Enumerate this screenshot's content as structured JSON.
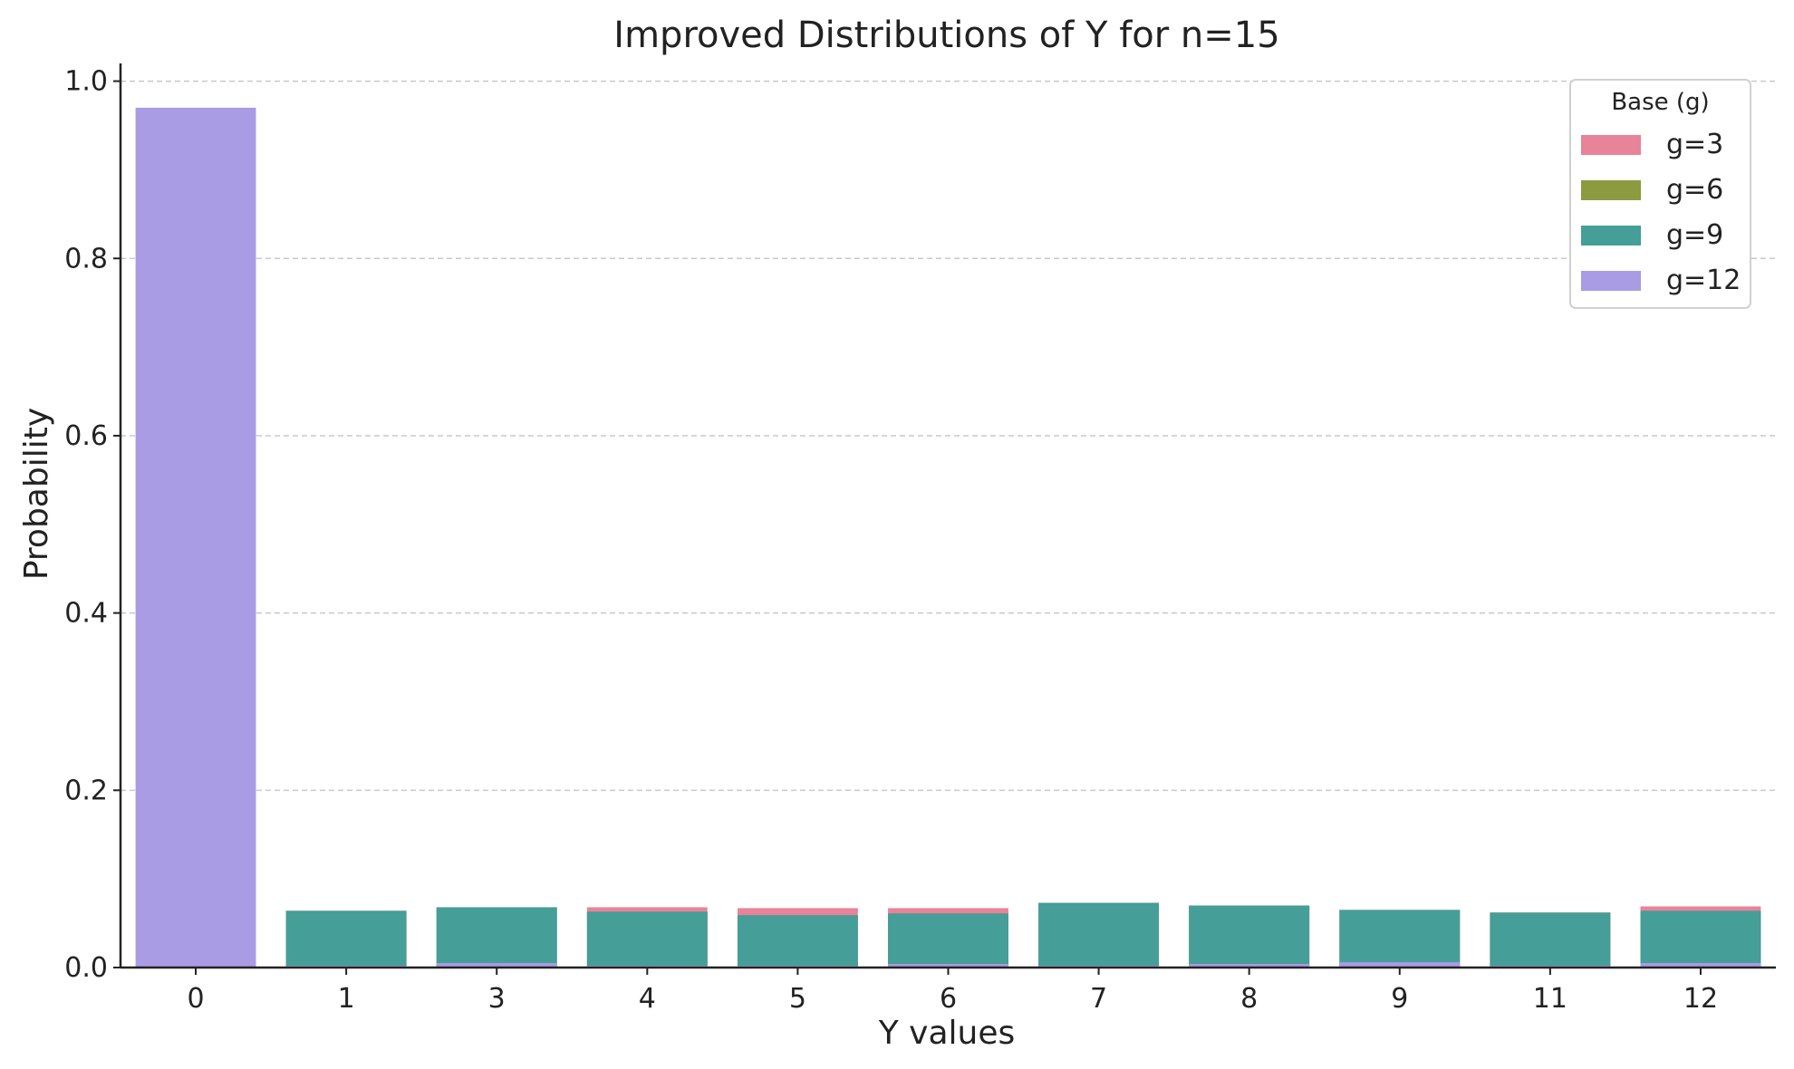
{
  "chart_data": {
    "type": "bar",
    "title": "Improved Distributions of Y for n=15",
    "xlabel": "Y values",
    "ylabel": "Probability",
    "categories": [
      "0",
      "1",
      "3",
      "4",
      "5",
      "6",
      "7",
      "8",
      "9",
      "11",
      "12"
    ],
    "ylim": [
      0,
      1.02
    ],
    "yticks": [
      "0.0",
      "0.2",
      "0.4",
      "0.6",
      "0.8",
      "1.0"
    ],
    "grid": "y-dashed",
    "overlay": "bars drawn on top of each other in legend order (g=3 first, g=12 last)",
    "legend": {
      "title": "Base (g)",
      "position": "top-right"
    },
    "series": [
      {
        "name": "g=3",
        "color": "#E8839A",
        "values": [
          null,
          0.064,
          0.068,
          0.068,
          0.067,
          0.067,
          0.073,
          0.07,
          0.065,
          0.062,
          0.069
        ]
      },
      {
        "name": "g=6",
        "color": "#8C9A40",
        "values": [
          null,
          0.064,
          0.068,
          0.063,
          0.059,
          0.061,
          0.073,
          0.07,
          0.065,
          0.062,
          0.064
        ]
      },
      {
        "name": "g=9",
        "color": "#459E97",
        "values": [
          null,
          0.064,
          0.068,
          0.063,
          0.059,
          0.061,
          0.073,
          0.07,
          0.065,
          0.062,
          0.064
        ]
      },
      {
        "name": "g=12",
        "color": "#AA9BE5",
        "values": [
          0.97,
          0.002,
          0.005,
          0.002,
          0.002,
          0.004,
          0.002,
          0.004,
          0.006,
          0.002,
          0.005
        ]
      }
    ]
  }
}
